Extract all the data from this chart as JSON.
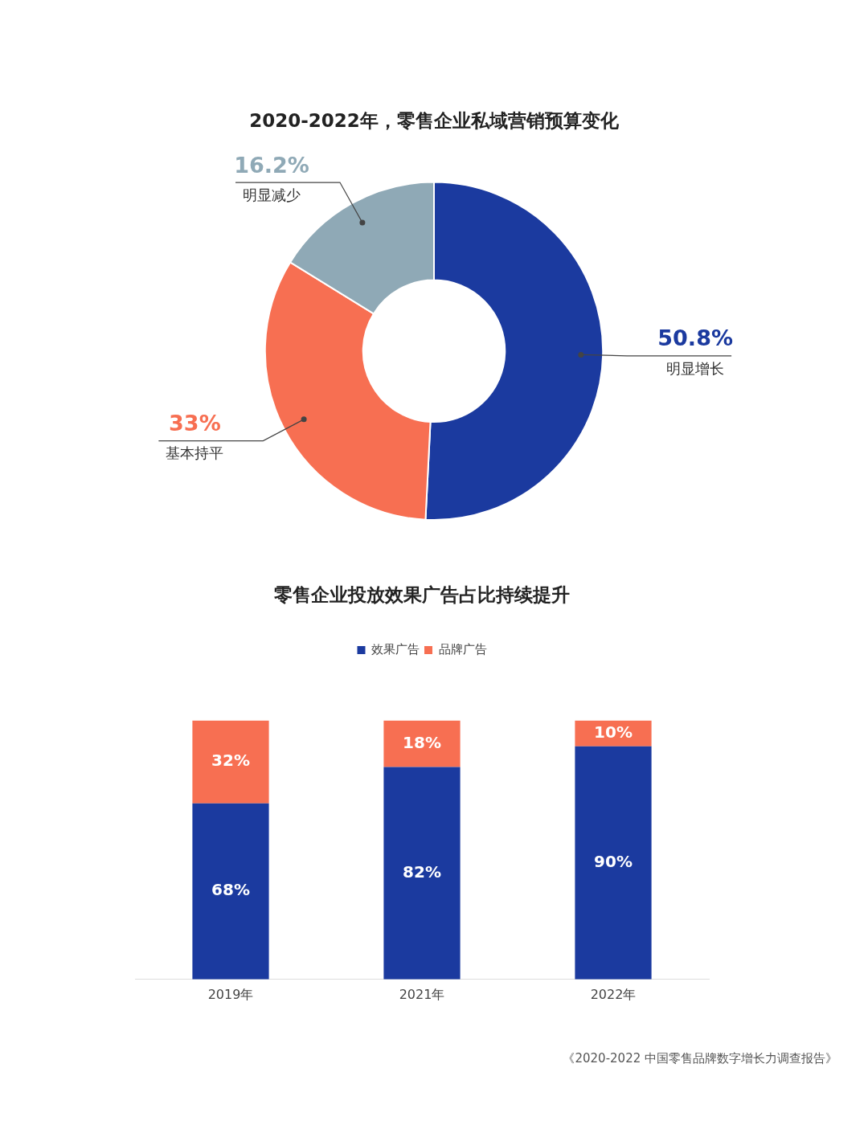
{
  "chart_data": [
    {
      "type": "donut",
      "title": "2020-2022年，零售企业私域营销预算变化",
      "categories": [
        "明显增长",
        "基本持平",
        "明显减少"
      ],
      "values": [
        50.8,
        33,
        16.2
      ],
      "colors": [
        "#1b3a9f",
        "#f76f52",
        "#8fa9b6"
      ],
      "value_labels": [
        "50.8%",
        "33%",
        "16.2%"
      ],
      "legend": false
    },
    {
      "type": "bar",
      "title": "零售企业投放效果广告占比持续提升",
      "categories": [
        "2019年",
        "2021年",
        "2022年"
      ],
      "stacked": true,
      "legend": "top",
      "grid": false,
      "tick_labels": "x",
      "series": [
        {
          "name": "效果广告",
          "color": "#1b3a9f",
          "values": [
            68,
            82,
            90
          ],
          "value_labels": [
            "68%",
            "82%",
            "90%"
          ]
        },
        {
          "name": "品牌广告",
          "color": "#f76f52",
          "values": [
            32,
            18,
            10
          ],
          "value_labels": [
            "32%",
            "18%",
            "10%"
          ]
        }
      ],
      "annotations": [
        "《2020-2022 中国零售品牌数字增长力调查报告》"
      ]
    }
  ]
}
